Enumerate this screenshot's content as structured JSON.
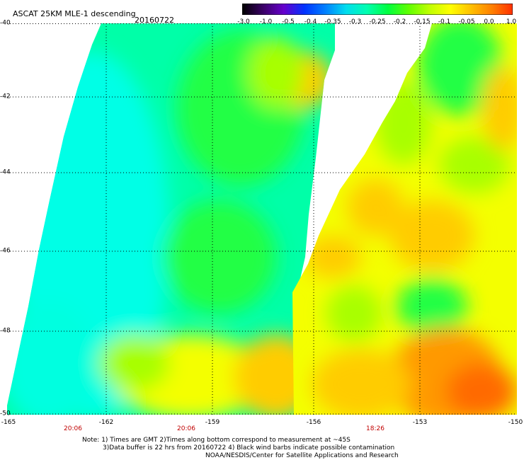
{
  "header": {
    "title": "ASCAT 25KM MLE-1 descending",
    "date": "20160722"
  },
  "colorbar": {
    "ticks": [
      "-3.0",
      "-1.0",
      "-0.5",
      "-0.4",
      "-0.35",
      "-0.3",
      "-0.25",
      "-0.2",
      "-0.15",
      "-0.1",
      "-0.05",
      "0.0",
      "1.0"
    ],
    "stops": [
      "#000000",
      "#3a0066",
      "#6600cc",
      "#0033ff",
      "#0080ff",
      "#00ddee",
      "#00ffb0",
      "#00ff40",
      "#60ff00",
      "#c0ff00",
      "#ffff00",
      "#ffc000",
      "#ff8000",
      "#ff3000"
    ]
  },
  "map": {
    "lat_labels": [
      "-40",
      "-42",
      "-44",
      "-46",
      "-48",
      "-50"
    ],
    "lon_labels": [
      "-165",
      "-162",
      "-159",
      "-156",
      "-153",
      "-150"
    ],
    "time_labels": [
      "20:06",
      "20:06",
      "18:26"
    ],
    "field_colors": {
      "cyan": "#00ffe6",
      "aqua": "#00ffa8",
      "green": "#22ff44",
      "yellowgreen": "#a8ff00",
      "yellow": "#f4ff00",
      "orange_light": "#ffcc00",
      "orange": "#ff9900",
      "orange_deep": "#ff6a00",
      "gap": "#ffffff"
    }
  },
  "notes": {
    "line1": "Note: 1) Times are GMT 2)Times along bottom correspond to measurement at ~45S",
    "line2": "3)Data buffer is 22 hrs from 20160722 4) Black wind barbs indicate possible contamination",
    "line3": "NOAA/NESDIS/Center for Satellite Applications and Research"
  }
}
